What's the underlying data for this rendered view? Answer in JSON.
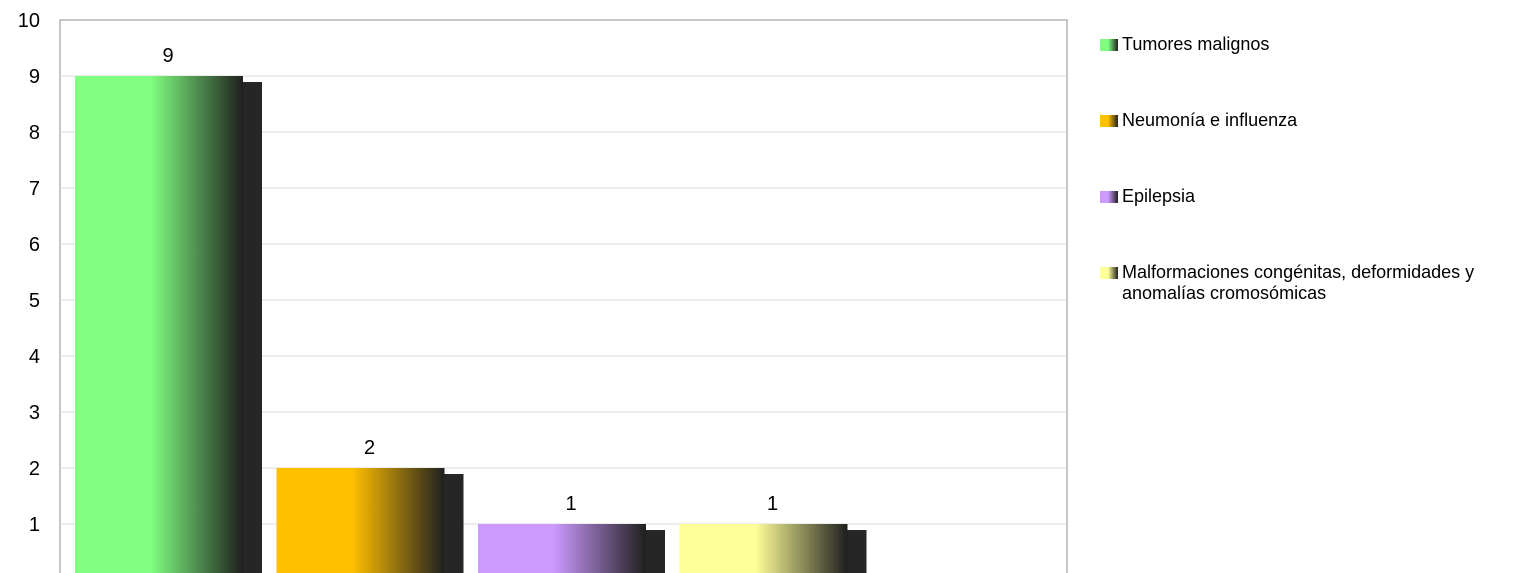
{
  "chart_data": {
    "type": "bar",
    "title": "",
    "xlabel": "",
    "ylabel": "",
    "ylim": [
      0,
      10
    ],
    "yticks": [
      1,
      2,
      3,
      4,
      5,
      6,
      7,
      8,
      9,
      10
    ],
    "grid": true,
    "legend_position": "right",
    "categories": [
      "Tumores malignos",
      "Neumonía e influenza",
      "Epilepsia",
      "Malformaciones congénitas, deformidades y anomalías cromosómicas"
    ],
    "values": [
      9,
      2,
      1,
      1
    ],
    "data_labels": [
      "9",
      "2",
      "1",
      "1"
    ],
    "colors": [
      "#80ff80",
      "#ffc000",
      "#cc99ff",
      "#ffff99"
    ]
  }
}
